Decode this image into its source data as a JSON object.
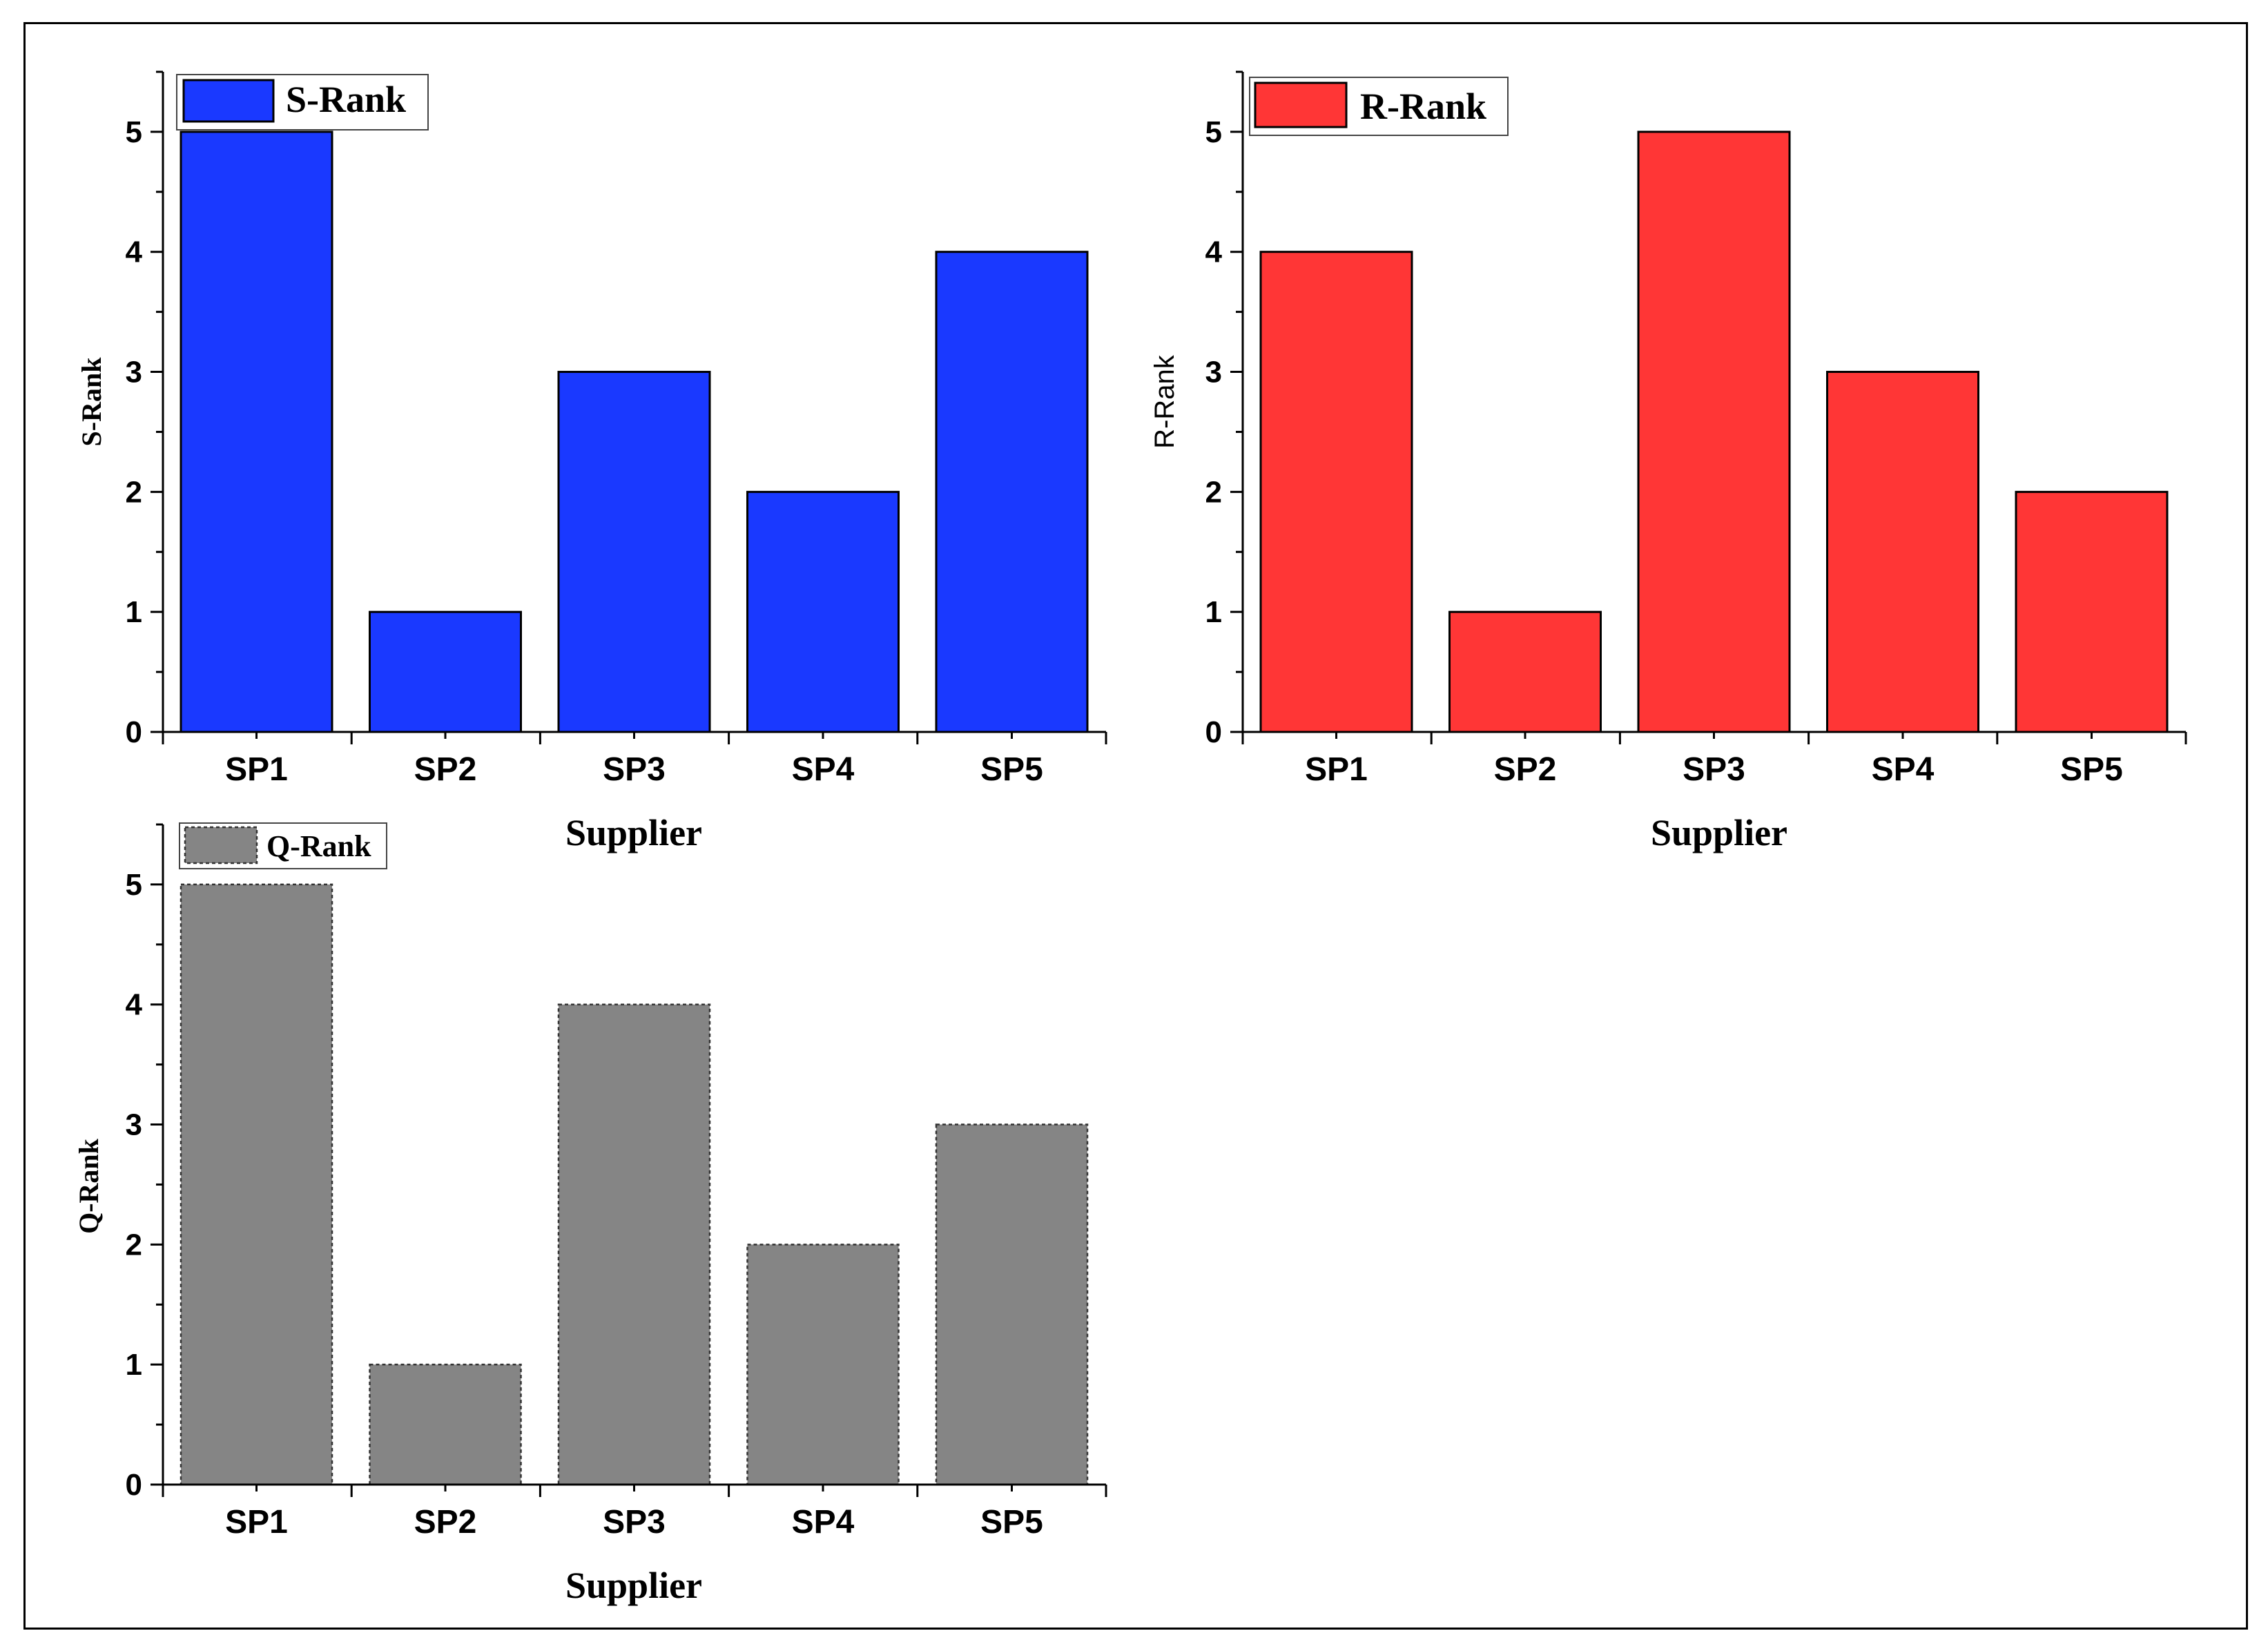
{
  "chart_data": [
    {
      "type": "bar",
      "title": "",
      "categories": [
        "SP1",
        "SP2",
        "SP3",
        "SP4",
        "SP5"
      ],
      "series": [
        {
          "name": "S-Rank",
          "values": [
            5,
            1,
            3,
            2,
            4
          ]
        }
      ],
      "xlabel": "Supplier",
      "ylabel": "S-Rank",
      "ylim": [
        0,
        5.5
      ],
      "yticks": [
        0,
        1,
        2,
        3,
        4,
        5
      ],
      "legend": {
        "label": "S-Rank",
        "placement": "top-left"
      },
      "color": "#1a39ff"
    },
    {
      "type": "bar",
      "title": "",
      "categories": [
        "SP1",
        "SP2",
        "SP3",
        "SP4",
        "SP5"
      ],
      "series": [
        {
          "name": "R-Rank",
          "values": [
            4,
            1,
            5,
            3,
            2
          ]
        }
      ],
      "xlabel": "Supplier",
      "ylabel": "R-Rank",
      "ylim": [
        0,
        5.5
      ],
      "yticks": [
        0,
        1,
        2,
        3,
        4,
        5
      ],
      "legend": {
        "label": "R-Rank",
        "placement": "top-left"
      },
      "color": "#ff3636"
    },
    {
      "type": "bar",
      "title": "",
      "categories": [
        "SP1",
        "SP2",
        "SP3",
        "SP4",
        "SP5"
      ],
      "series": [
        {
          "name": "Q-Rank",
          "values": [
            5,
            1,
            4,
            2,
            3
          ]
        }
      ],
      "xlabel": "Supplier",
      "ylabel": "Q-Rank",
      "ylim": [
        0,
        5.5
      ],
      "yticks": [
        0,
        1,
        2,
        3,
        4,
        5
      ],
      "legend": {
        "label": "Q-Rank",
        "placement": "top-left"
      },
      "color": "#858585"
    }
  ]
}
